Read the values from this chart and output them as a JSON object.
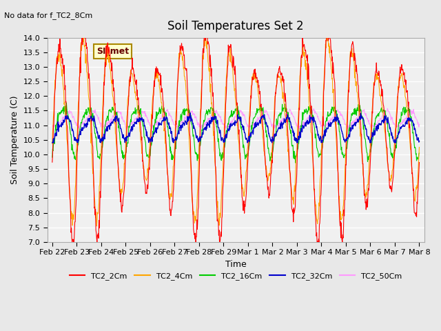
{
  "title": "Soil Temperatures Set 2",
  "note": "No data for f_TC2_8Cm",
  "xlabel": "Time",
  "ylabel": "Soil Temperature (C)",
  "ylim": [
    7.0,
    14.0
  ],
  "yticks": [
    7.0,
    7.5,
    8.0,
    8.5,
    9.0,
    9.5,
    10.0,
    10.5,
    11.0,
    11.5,
    12.0,
    12.5,
    13.0,
    13.5,
    14.0
  ],
  "x_tick_labels": [
    "Feb 22",
    "Feb 23",
    "Feb 24",
    "Feb 25",
    "Feb 26",
    "Feb 27",
    "Feb 28",
    "Feb 29",
    "Mar 1",
    "Mar 2",
    "Mar 3",
    "Mar 4",
    "Mar 5",
    "Mar 6",
    "Mar 7",
    "Mar 8"
  ],
  "series_colors": {
    "TC2_2Cm": "#ff0000",
    "TC2_4Cm": "#ffa500",
    "TC2_16Cm": "#00cc00",
    "TC2_32Cm": "#0000cc",
    "TC2_50Cm": "#ff99ff"
  },
  "legend_label": "SI_met",
  "background_color": "#e8e8e8",
  "plot_bg_color": "#f0f0f0",
  "grid_color": "#ffffff",
  "n_points": 960,
  "seed": 42
}
